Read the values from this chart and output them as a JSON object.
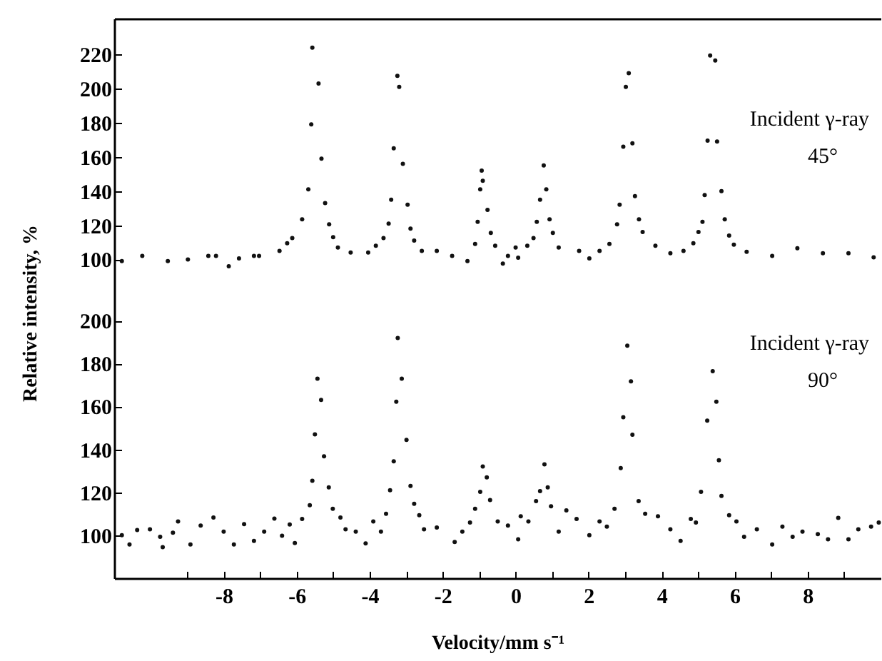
{
  "chart_data": [
    {
      "type": "scatter",
      "ylabel": "Relative intensity, %",
      "marker": "circle",
      "tick_labels": "y",
      "annotations": [
        "Incident γ-ray",
        "45°"
      ],
      "xlim": [
        -11,
        10
      ],
      "ylim": [
        73,
        241
      ],
      "yticks": [
        100,
        120,
        140,
        160,
        180,
        200,
        220
      ],
      "series": [
        {
          "color": "#111111",
          "x": [
            -10.79,
            -10.23,
            -9.53,
            -8.98,
            -8.42,
            -8.21,
            -7.86,
            -7.58,
            -7.17,
            -7.03,
            -6.47,
            -6.26,
            -6.12,
            -5.85,
            -5.68,
            -5.6,
            -5.57,
            -5.4,
            -5.32,
            -5.22,
            -5.11,
            -5.0,
            -4.87,
            -4.52,
            -4.04,
            -3.83,
            -3.62,
            -3.48,
            -3.41,
            -3.34,
            -3.24,
            -3.19,
            -3.09,
            -2.96,
            -2.88,
            -2.78,
            -2.57,
            -2.16,
            -1.74,
            -1.32,
            -1.11,
            -1.04,
            -0.97,
            -0.93,
            -0.9,
            -0.77,
            -0.68,
            -0.56,
            -0.35,
            -0.21,
            0.0,
            0.07,
            0.32,
            0.49,
            0.58,
            0.67,
            0.77,
            0.84,
            0.93,
            1.02,
            1.18,
            1.74,
            2.02,
            2.3,
            2.57,
            2.78,
            2.85,
            2.95,
            3.02,
            3.1,
            3.2,
            3.27,
            3.38,
            3.48,
            3.83,
            4.24,
            4.6,
            4.87,
            5.01,
            5.12,
            5.18,
            5.26,
            5.33,
            5.47,
            5.52,
            5.64,
            5.73,
            5.85,
            5.98,
            6.33,
            7.03,
            7.72,
            8.42,
            9.12,
            9.81
          ],
          "values": [
            99,
            102,
            99,
            100,
            102,
            102,
            96,
            100.6,
            102,
            102,
            105,
            109.5,
            112.5,
            123.5,
            141,
            179,
            224,
            203,
            159,
            133,
            120.5,
            113,
            107,
            104,
            104,
            108,
            112.5,
            121,
            135,
            165,
            207.5,
            201,
            156,
            132,
            118,
            111,
            105,
            105,
            102,
            99,
            109,
            122,
            141,
            152,
            146,
            129,
            115.5,
            108,
            97.6,
            102,
            107,
            101,
            108,
            112.5,
            122,
            135,
            155,
            141,
            123.5,
            115.5,
            107,
            105,
            100.6,
            105,
            109,
            120.5,
            132,
            166,
            201,
            209,
            168,
            137,
            123.5,
            116,
            108,
            103.6,
            105,
            109.5,
            116,
            122,
            137.7,
            169.5,
            219.4,
            216.4,
            169,
            140,
            123.5,
            114,
            108.6,
            104.5,
            102,
            106.5,
            103.6,
            103.6,
            101.2
          ]
        }
      ]
    },
    {
      "type": "scatter",
      "xlabel": "Velocity/mm s⁻¹",
      "marker": "circle",
      "annotations": [
        "Incident γ-ray",
        "90°"
      ],
      "xlim": [
        -11,
        10
      ],
      "xticks": [
        {
          "value": -9,
          "label": null
        },
        -8,
        {
          "value": -7,
          "label": null
        },
        -6,
        {
          "value": -5,
          "label": null
        },
        -4,
        {
          "value": -3,
          "label": null
        },
        -2,
        {
          "value": -1,
          "label": null
        },
        0,
        {
          "value": 1,
          "label": null
        },
        2,
        {
          "value": 3,
          "label": null
        },
        4,
        {
          "value": 5,
          "label": null
        },
        6,
        {
          "value": 7,
          "label": null
        },
        8,
        {
          "value": 9,
          "label": null
        }
      ],
      "ylim": [
        80,
        207
      ],
      "yticks": [
        100,
        120,
        140,
        160,
        180,
        200
      ],
      "series": [
        {
          "color": "#111111",
          "x": [
            -10.79,
            -10.58,
            -10.37,
            -10.02,
            -9.74,
            -9.67,
            -9.39,
            -9.25,
            -8.91,
            -8.63,
            -8.28,
            -8.0,
            -7.72,
            -7.44,
            -7.17,
            -6.89,
            -6.61,
            -6.4,
            -6.19,
            -6.05,
            -5.85,
            -5.64,
            -5.57,
            -5.5,
            -5.43,
            -5.33,
            -5.25,
            -5.12,
            -5.01,
            -4.8,
            -4.66,
            -4.38,
            -4.11,
            -3.9,
            -3.69,
            -3.55,
            -3.44,
            -3.34,
            -3.27,
            -3.23,
            -3.12,
            -2.99,
            -2.88,
            -2.78,
            -2.64,
            -2.51,
            -2.16,
            -1.67,
            -1.46,
            -1.25,
            -1.11,
            -0.97,
            -0.9,
            -0.79,
            -0.7,
            -0.49,
            -0.21,
            0.07,
            0.14,
            0.35,
            0.56,
            0.67,
            0.79,
            0.88,
            0.97,
            1.18,
            1.39,
            1.67,
            2.02,
            2.3,
            2.5,
            2.71,
            2.88,
            2.95,
            3.06,
            3.16,
            3.2,
            3.37,
            3.55,
            3.9,
            4.24,
            4.52,
            4.8,
            4.94,
            5.08,
            5.25,
            5.4,
            5.5,
            5.57,
            5.64,
            5.85,
            6.05,
            6.26,
            6.61,
            7.03,
            7.31,
            7.59,
            7.86,
            8.28,
            8.56,
            8.84,
            9.12,
            9.39,
            9.74,
            9.95
          ],
          "values": [
            100,
            95.7,
            102.4,
            102.8,
            99.3,
            94.5,
            101.2,
            106.4,
            95.7,
            104.5,
            108.3,
            101.7,
            95.7,
            105.2,
            97.4,
            101.7,
            107.8,
            99.8,
            105,
            96.4,
            107.6,
            114,
            125.4,
            147,
            172.9,
            163,
            136.8,
            122.3,
            112.3,
            108.3,
            102.8,
            101.7,
            96.2,
            106.4,
            101.7,
            110,
            121,
            134.4,
            162.2,
            191.9,
            172.9,
            144.4,
            123,
            114.7,
            109.3,
            102.8,
            103.6,
            96.9,
            101.7,
            105.9,
            112.3,
            120.2,
            132,
            127,
            116.4,
            106.4,
            104.5,
            98.1,
            108.8,
            106.4,
            115.9,
            120.6,
            133,
            122.3,
            113.5,
            101.7,
            111.6,
            107.6,
            100,
            106.4,
            104,
            112.3,
            131.3,
            155,
            188.3,
            171.7,
            146.8,
            115.9,
            110,
            108.8,
            102.8,
            97.4,
            107.6,
            105.9,
            120.2,
            153.4,
            176.4,
            162.2,
            134.9,
            118.3,
            109.3,
            106.4,
            99.3,
            102.8,
            95.7,
            104,
            99.3,
            101.7,
            100.5,
            98.1,
            108.1,
            98.1,
            102.8,
            104,
            105.9
          ]
        }
      ]
    }
  ]
}
